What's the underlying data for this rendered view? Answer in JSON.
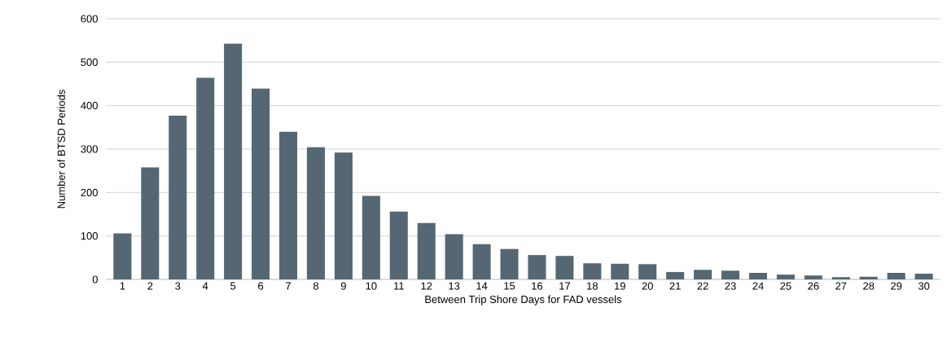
{
  "chart_data": {
    "type": "bar",
    "xlabel": "Between Trip Shore Days for FAD vessels",
    "ylabel": "Number of BTSD Periods",
    "categories": [
      "1",
      "2",
      "3",
      "4",
      "5",
      "6",
      "7",
      "8",
      "9",
      "10",
      "11",
      "12",
      "13",
      "14",
      "15",
      "16",
      "17",
      "18",
      "19",
      "20",
      "21",
      "22",
      "23",
      "24",
      "25",
      "26",
      "27",
      "28",
      "29",
      "30"
    ],
    "values": [
      106,
      258,
      377,
      464,
      543,
      439,
      340,
      304,
      292,
      192,
      156,
      130,
      104,
      81,
      70,
      56,
      54,
      37,
      36,
      35,
      17,
      22,
      20,
      15,
      11,
      9,
      5,
      6,
      15,
      13
    ],
    "color": "#556773",
    "ylim": [
      0,
      600
    ],
    "yticks": [
      0,
      100,
      200,
      300,
      400,
      500,
      600
    ],
    "grid": "y"
  }
}
